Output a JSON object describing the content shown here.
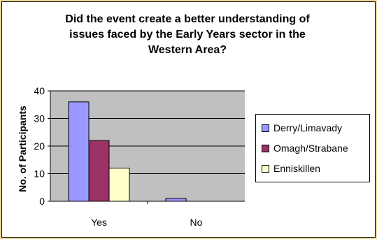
{
  "chart_data": {
    "type": "bar",
    "title_lines": [
      "Did the event create a better understanding of",
      "issues faced by the Early Years sector in the",
      "Western Area?"
    ],
    "xlabel": "",
    "ylabel": "No. of Participants",
    "ylim": [
      0,
      40
    ],
    "yticks": [
      0,
      10,
      20,
      30,
      40
    ],
    "categories": [
      "Yes",
      "No"
    ],
    "series": [
      {
        "name": "Derry/Limavady",
        "values": [
          36,
          1
        ],
        "color": "#9999ff"
      },
      {
        "name": "Omagh/Strabane",
        "values": [
          22,
          0
        ],
        "color": "#993366"
      },
      {
        "name": "Enniskillen",
        "values": [
          12,
          0
        ],
        "color": "#ffffcc"
      }
    ],
    "grid": true,
    "plot_background": "#c0c0c0",
    "legend_position": "right"
  }
}
